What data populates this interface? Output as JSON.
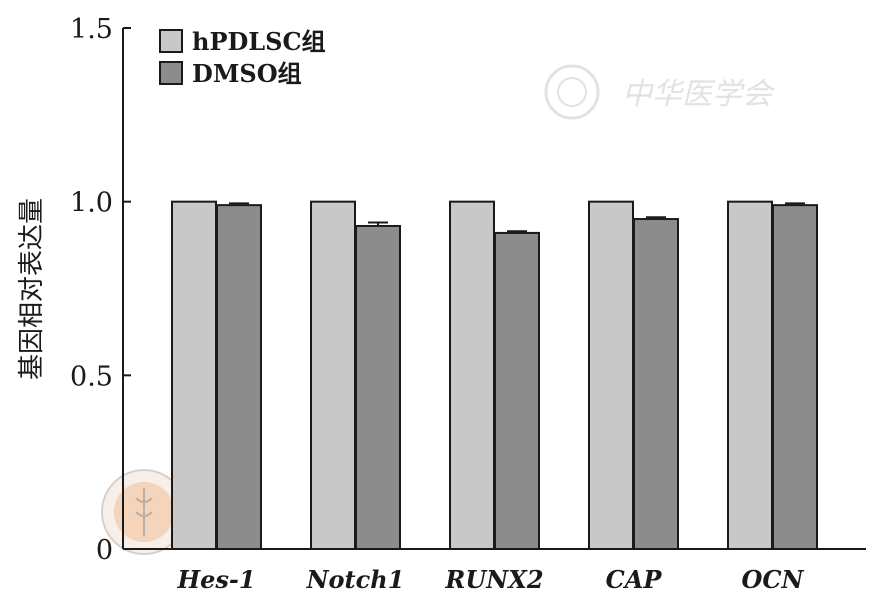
{
  "chart_data": {
    "type": "bar",
    "categories": [
      "Hes-1",
      "Notch1",
      "RUNX2",
      "CAP",
      "OCN"
    ],
    "series": [
      {
        "name": "hPDLSC组",
        "color": "#c8c8c8",
        "values": [
          1.0,
          1.0,
          1.0,
          1.0,
          1.0
        ],
        "errors": [
          0,
          0,
          0,
          0,
          0
        ]
      },
      {
        "name": "DMSO组",
        "color": "#8c8c8c",
        "values": [
          0.99,
          0.93,
          0.91,
          0.95,
          0.99
        ],
        "errors": [
          0.005,
          0.01,
          0.005,
          0.005,
          0.005
        ]
      }
    ],
    "ylabel": "基因相对表达量",
    "xlabel": "",
    "ylim": [
      0,
      1.5
    ],
    "yticks": [
      0,
      0.5,
      1.0,
      1.5
    ],
    "ytick_labels": [
      "0",
      "0.5",
      "1.0",
      "1.5"
    ],
    "legend_position": "top-left",
    "grid": false
  },
  "watermark": {
    "text": "中华医学会",
    "emblem": "cma-emblem-icon"
  }
}
